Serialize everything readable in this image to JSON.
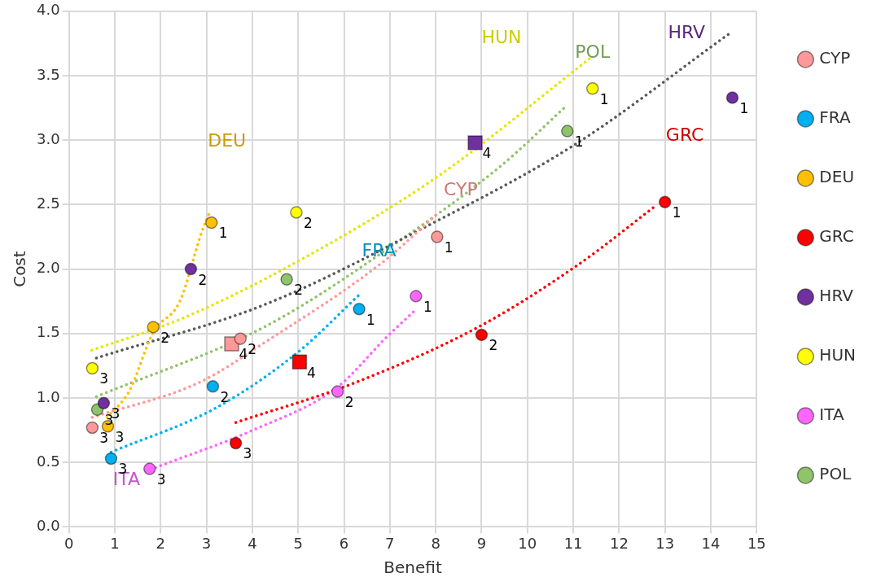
{
  "chart_data": {
    "type": "scatter",
    "xlabel": "Benefit",
    "ylabel": "Cost",
    "xlim": [
      0,
      15
    ],
    "ylim": [
      0,
      4
    ],
    "xticks": [
      0,
      1,
      2,
      3,
      4,
      5,
      6,
      7,
      8,
      9,
      10,
      11,
      12,
      13,
      14,
      15
    ],
    "yticks": [
      {
        "value": 0,
        "label": "0.0"
      },
      {
        "value": 0.5,
        "label": "0.5"
      },
      {
        "value": 1,
        "label": "1.0"
      },
      {
        "value": 1.5,
        "label": "1.5"
      },
      {
        "value": 2,
        "label": "2.0"
      },
      {
        "value": 2.5,
        "label": "2.5"
      },
      {
        "value": 3,
        "label": "3.0"
      },
      {
        "value": 3.5,
        "label": "3.5"
      },
      {
        "value": 4,
        "label": "4.0"
      }
    ],
    "grid": true,
    "legend": "right",
    "marker": "circle",
    "series": [
      {
        "name": "CYP",
        "type": "scatter",
        "color": "#ff9999",
        "x": [
          8.03,
          3.74,
          0.51
        ],
        "values": [
          2.25,
          1.46,
          0.77
        ]
      },
      {
        "name": "FRA",
        "type": "scatter",
        "color": "#00b0f0",
        "x": [
          6.33,
          3.14,
          0.92
        ],
        "values": [
          1.69,
          1.09,
          0.53
        ]
      },
      {
        "name": "DEU",
        "type": "scatter",
        "color": "#ffc000",
        "x": [
          3.11,
          1.84,
          0.85
        ],
        "values": [
          2.36,
          1.55,
          0.78
        ]
      },
      {
        "name": "GRC",
        "type": "scatter",
        "color": "#ff0000",
        "x": [
          13.0,
          9.0,
          3.64
        ],
        "values": [
          2.52,
          1.49,
          0.65
        ]
      },
      {
        "name": "HRV",
        "type": "scatter",
        "color": "#7030a0",
        "x": [
          14.47,
          2.66,
          0.76
        ],
        "values": [
          3.33,
          2.0,
          0.96
        ]
      },
      {
        "name": "HUN",
        "type": "scatter",
        "color": "#ffff00",
        "x": [
          11.42,
          4.96,
          0.51
        ],
        "values": [
          3.4,
          2.44,
          1.23
        ]
      },
      {
        "name": "ITA",
        "type": "scatter",
        "color": "#ff66ff",
        "x": [
          7.57,
          5.86,
          1.76
        ],
        "values": [
          1.79,
          1.05,
          0.45
        ]
      },
      {
        "name": "POL",
        "type": "scatter",
        "color": "#8fc46a",
        "x": [
          10.87,
          4.75,
          0.62
        ],
        "values": [
          3.07,
          1.92,
          0.91
        ]
      },
      {
        "type": "scatter",
        "marker": "square",
        "color": "#ff9999",
        "x": [
          3.55
        ],
        "values": [
          1.42
        ]
      },
      {
        "type": "scatter",
        "marker": "square",
        "color": "#ff0000",
        "x": [
          5.03
        ],
        "values": [
          1.28
        ]
      },
      {
        "type": "scatter",
        "marker": "square",
        "color": "#7030a0",
        "x": [
          8.86
        ],
        "values": [
          2.98
        ]
      },
      {
        "type": "line",
        "line_style": "dotted",
        "marker": "none",
        "color": "#ff9999",
        "x": [
          0.51,
          2.84,
          4.31,
          6.83,
          8.01
        ],
        "values": [
          0.85,
          1.12,
          1.44,
          2.05,
          2.42
        ]
      },
      {
        "type": "line",
        "line_style": "dotted",
        "marker": "none",
        "color": "#00b0f0",
        "x": [
          0.92,
          3.19,
          5.01,
          6.33
        ],
        "values": [
          0.58,
          0.92,
          1.36,
          1.8
        ]
      },
      {
        "type": "line",
        "line_style": "dotted",
        "marker": "none",
        "color": "#ffc000",
        "x": [
          0.83,
          1.31,
          1.84,
          2.42,
          2.89,
          3.09
        ],
        "values": [
          0.85,
          1.05,
          1.51,
          1.75,
          2.28,
          2.46
        ]
      },
      {
        "type": "line",
        "line_style": "dotted",
        "marker": "none",
        "color": "#ff0000",
        "x": [
          3.64,
          6.25,
          8.98,
          11.13,
          12.83
        ],
        "values": [
          0.81,
          1.12,
          1.56,
          2.04,
          2.5
        ]
      },
      {
        "type": "line",
        "line_style": "dotted",
        "marker": "none",
        "color": "#595959",
        "x": [
          0.6,
          4.31,
          7.9,
          11.01,
          14.38
        ],
        "values": [
          1.31,
          1.73,
          2.35,
          2.96,
          3.82
        ]
      },
      {
        "type": "line",
        "line_style": "dotted",
        "marker": "none",
        "color": "#e6e600",
        "x": [
          0.5,
          2.49,
          4.89,
          8.01,
          11.42
        ],
        "values": [
          1.37,
          1.62,
          2.04,
          2.71,
          3.65
        ]
      },
      {
        "type": "line",
        "line_style": "dotted",
        "marker": "none",
        "color": "#ff66ff",
        "x": [
          1.89,
          4.01,
          5.84,
          6.95,
          7.52
        ],
        "values": [
          0.46,
          0.75,
          1.08,
          1.48,
          1.67
        ]
      },
      {
        "type": "line",
        "line_style": "dotted",
        "marker": "none",
        "color": "#8fc46a",
        "x": [
          0.6,
          4.31,
          7.25,
          9.42,
          10.83
        ],
        "values": [
          1.01,
          1.56,
          2.23,
          2.8,
          3.26
        ]
      }
    ],
    "annotations": [
      "CYP",
      "FRA",
      "DEU",
      "GRC",
      "HRV",
      "HUN",
      "ITA",
      "POL",
      {
        "text": "1",
        "x": 8.03,
        "y": 2.25
      },
      {
        "text": "2",
        "x": 3.74,
        "y": 1.46
      },
      {
        "text": "3",
        "x": 0.51,
        "y": 0.77
      },
      {
        "text": "4",
        "x": 3.55,
        "y": 1.42
      },
      {
        "text": "1",
        "x": 6.33,
        "y": 1.69
      },
      {
        "text": "2",
        "x": 3.14,
        "y": 1.09
      },
      {
        "text": "3",
        "x": 0.92,
        "y": 0.53
      },
      {
        "text": "1",
        "x": 3.11,
        "y": 2.36
      },
      {
        "text": "2",
        "x": 1.84,
        "y": 1.55
      },
      {
        "text": "3",
        "x": 0.85,
        "y": 0.78
      },
      {
        "text": "1",
        "x": 13.0,
        "y": 2.52
      },
      {
        "text": "2",
        "x": 9.0,
        "y": 1.49
      },
      {
        "text": "3",
        "x": 3.64,
        "y": 0.65
      },
      {
        "text": "4",
        "x": 5.03,
        "y": 1.28
      },
      {
        "text": "1",
        "x": 14.47,
        "y": 3.33
      },
      {
        "text": "2",
        "x": 2.66,
        "y": 2.0
      },
      {
        "text": "3",
        "x": 0.76,
        "y": 0.96
      },
      {
        "text": "4",
        "x": 8.86,
        "y": 2.98
      },
      {
        "text": "1",
        "x": 11.42,
        "y": 3.4
      },
      {
        "text": "2",
        "x": 4.96,
        "y": 2.44
      },
      {
        "text": "3",
        "x": 0.51,
        "y": 1.23
      },
      {
        "text": "1",
        "x": 7.57,
        "y": 1.79
      },
      {
        "text": "2",
        "x": 5.86,
        "y": 1.05
      },
      {
        "text": "3",
        "x": 1.76,
        "y": 0.45
      },
      {
        "text": "1",
        "x": 10.87,
        "y": 3.07
      },
      {
        "text": "2",
        "x": 4.75,
        "y": 1.92
      },
      {
        "text": "3",
        "x": 0.62,
        "y": 0.91
      }
    ]
  }
}
